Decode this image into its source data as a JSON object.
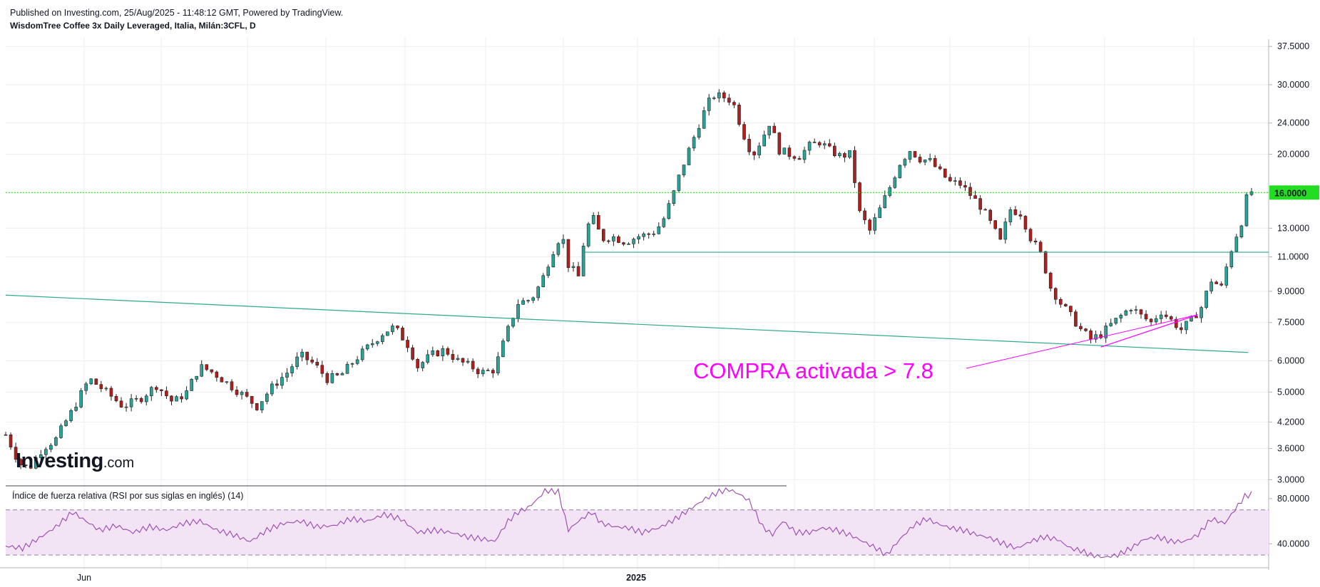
{
  "header": {
    "published": "Published on Investing.com, 25/Aug/2025 - 11:48:12 GMT, Powered by TradingView.",
    "instrument": "WisdomTree Coffee 3x Daily Leveraged, Italia, Milán:3CFL, D"
  },
  "logo": {
    "brand": "Investing",
    "suffix": ".com"
  },
  "colors": {
    "up": "#26a69a",
    "down": "#b71c1c",
    "hline": "#00e000",
    "trend": "#2bab8c",
    "annotation": "#ff00ff",
    "rsi": "#9a47b0",
    "rsi_band": "#f2e3f5",
    "grid": "#eeeeee",
    "price_label_bg": "#22dd22"
  },
  "chart_data": [
    {
      "type": "candlestick",
      "title": "WisdomTree Coffee 3x Daily Leveraged, Italia, Milán:3CFL, D",
      "y_scale": "log",
      "y_ticks": [
        "37.5000",
        "30.0000",
        "24.0000",
        "20.0000",
        "16.0000",
        "13.0000",
        "11.0000",
        "9.0000",
        "7.5000",
        "6.0000",
        "5.0000",
        "4.2000",
        "3.6000",
        "3.0000"
      ],
      "x_ticks": [
        "Jun",
        "2025"
      ],
      "last_price_label": "16.0000",
      "ylim": [
        2.8,
        38
      ],
      "price_path": [
        [
          0,
          3.9
        ],
        [
          8,
          3.3
        ],
        [
          14,
          3.2
        ],
        [
          22,
          3.6
        ],
        [
          30,
          3.8
        ],
        [
          40,
          4.5
        ],
        [
          50,
          5.4
        ],
        [
          60,
          5.0
        ],
        [
          70,
          4.6
        ],
        [
          80,
          4.8
        ],
        [
          90,
          5.2
        ],
        [
          100,
          4.7
        ],
        [
          108,
          5.0
        ],
        [
          116,
          5.8
        ],
        [
          124,
          5.6
        ],
        [
          134,
          5.2
        ],
        [
          142,
          4.9
        ],
        [
          150,
          4.6
        ],
        [
          160,
          5.2
        ],
        [
          168,
          5.6
        ],
        [
          176,
          6.2
        ],
        [
          184,
          5.9
        ],
        [
          192,
          5.4
        ],
        [
          200,
          5.5
        ],
        [
          208,
          6.0
        ],
        [
          218,
          6.6
        ],
        [
          226,
          7.1
        ],
        [
          232,
          7.3
        ],
        [
          240,
          6.6
        ],
        [
          246,
          5.8
        ],
        [
          254,
          6.2
        ],
        [
          262,
          6.4
        ],
        [
          270,
          6.0
        ],
        [
          278,
          5.8
        ],
        [
          284,
          5.6
        ],
        [
          292,
          5.7
        ],
        [
          298,
          6.8
        ],
        [
          306,
          8.4
        ],
        [
          314,
          8.6
        ],
        [
          320,
          9.5
        ],
        [
          326,
          11.2
        ],
        [
          332,
          12.6
        ],
        [
          336,
          10.5
        ],
        [
          342,
          9.8
        ],
        [
          346,
          12.5
        ],
        [
          350,
          14.0
        ],
        [
          356,
          12.2
        ],
        [
          362,
          12.4
        ],
        [
          370,
          12.0
        ],
        [
          378,
          12.4
        ],
        [
          386,
          12.6
        ],
        [
          392,
          13.4
        ],
        [
          398,
          15.5
        ],
        [
          404,
          18.5
        ],
        [
          410,
          21.5
        ],
        [
          416,
          25.0
        ],
        [
          422,
          28.2
        ],
        [
          428,
          28.0
        ],
        [
          434,
          27.3
        ],
        [
          440,
          22.8
        ],
        [
          446,
          19.8
        ],
        [
          452,
          22.0
        ],
        [
          456,
          24.0
        ],
        [
          462,
          20.5
        ],
        [
          468,
          20.0
        ],
        [
          474,
          19.8
        ],
        [
          480,
          21.0
        ],
        [
          486,
          21.5
        ],
        [
          492,
          20.5
        ],
        [
          498,
          19.8
        ],
        [
          504,
          20.0
        ],
        [
          510,
          14.2
        ],
        [
          516,
          12.8
        ],
        [
          522,
          14.5
        ],
        [
          528,
          16.5
        ],
        [
          534,
          19.0
        ],
        [
          540,
          20.5
        ],
        [
          546,
          19.5
        ],
        [
          552,
          19.2
        ],
        [
          558,
          18.0
        ],
        [
          564,
          17.0
        ],
        [
          570,
          16.8
        ],
        [
          576,
          15.8
        ],
        [
          582,
          14.8
        ],
        [
          588,
          13.4
        ],
        [
          594,
          12.0
        ],
        [
          600,
          14.5
        ],
        [
          606,
          14.2
        ],
        [
          612,
          12.3
        ],
        [
          618,
          11.2
        ],
        [
          624,
          9.2
        ],
        [
          630,
          8.4
        ],
        [
          636,
          7.8
        ],
        [
          642,
          7.2
        ],
        [
          648,
          6.8
        ],
        [
          654,
          7.0
        ],
        [
          660,
          7.4
        ],
        [
          666,
          7.8
        ],
        [
          672,
          8.2
        ],
        [
          678,
          7.8
        ],
        [
          684,
          7.5
        ],
        [
          690,
          8.0
        ],
        [
          696,
          7.6
        ],
        [
          702,
          7.2
        ],
        [
          708,
          7.6
        ],
        [
          714,
          8.2
        ],
        [
          720,
          9.6
        ],
        [
          726,
          9.2
        ],
        [
          732,
          11.5
        ],
        [
          738,
          13.5
        ],
        [
          742,
          16.1
        ]
      ],
      "horizontal_line": {
        "value": 16.0
      },
      "support_line": {
        "value": 11.3,
        "from_index": 346
      },
      "trendlines": [
        {
          "from": [
            0,
            8.8
          ],
          "to": [
            742,
            6.3
          ]
        },
        {
          "from": [
            654,
            6.5
          ],
          "to": [
            712,
            7.85
          ]
        }
      ],
      "annotation": {
        "text": "COMPRA activada > 7.8",
        "arrow_to": [
          712,
          7.85
        ]
      }
    },
    {
      "type": "line",
      "title": "Índice de fuerza relativa (RSI por sus siglas en inglés) (14)",
      "y_ticks": [
        "80.0000",
        "40.0000"
      ],
      "band": [
        30,
        70
      ],
      "ylim": [
        20,
        90
      ],
      "rsi_path": [
        [
          0,
          38
        ],
        [
          10,
          36
        ],
        [
          20,
          45
        ],
        [
          30,
          55
        ],
        [
          40,
          68
        ],
        [
          46,
          62
        ],
        [
          56,
          52
        ],
        [
          66,
          56
        ],
        [
          76,
          50
        ],
        [
          86,
          55
        ],
        [
          96,
          52
        ],
        [
          106,
          58
        ],
        [
          116,
          60
        ],
        [
          126,
          52
        ],
        [
          136,
          48
        ],
        [
          146,
          42
        ],
        [
          156,
          52
        ],
        [
          166,
          58
        ],
        [
          176,
          60
        ],
        [
          186,
          55
        ],
        [
          196,
          56
        ],
        [
          206,
          62
        ],
        [
          216,
          60
        ],
        [
          226,
          66
        ],
        [
          236,
          62
        ],
        [
          246,
          50
        ],
        [
          256,
          52
        ],
        [
          266,
          50
        ],
        [
          276,
          46
        ],
        [
          286,
          44
        ],
        [
          292,
          42
        ],
        [
          300,
          60
        ],
        [
          306,
          68
        ],
        [
          312,
          72
        ],
        [
          318,
          80
        ],
        [
          322,
          87
        ],
        [
          330,
          86
        ],
        [
          336,
          52
        ],
        [
          342,
          60
        ],
        [
          350,
          68
        ],
        [
          356,
          58
        ],
        [
          364,
          55
        ],
        [
          372,
          54
        ],
        [
          380,
          50
        ],
        [
          390,
          54
        ],
        [
          400,
          62
        ],
        [
          410,
          72
        ],
        [
          418,
          80
        ],
        [
          426,
          86
        ],
        [
          432,
          88
        ],
        [
          438,
          84
        ],
        [
          444,
          78
        ],
        [
          452,
          55
        ],
        [
          458,
          48
        ],
        [
          464,
          60
        ],
        [
          472,
          50
        ],
        [
          480,
          50
        ],
        [
          488,
          54
        ],
        [
          496,
          52
        ],
        [
          504,
          48
        ],
        [
          512,
          42
        ],
        [
          520,
          36
        ],
        [
          526,
          30
        ],
        [
          534,
          44
        ],
        [
          542,
          56
        ],
        [
          550,
          62
        ],
        [
          556,
          58
        ],
        [
          564,
          54
        ],
        [
          572,
          52
        ],
        [
          580,
          48
        ],
        [
          588,
          45
        ],
        [
          596,
          40
        ],
        [
          604,
          36
        ],
        [
          612,
          42
        ],
        [
          620,
          46
        ],
        [
          628,
          44
        ],
        [
          636,
          36
        ],
        [
          642,
          34
        ],
        [
          648,
          30
        ],
        [
          656,
          28
        ],
        [
          664,
          30
        ],
        [
          672,
          36
        ],
        [
          680,
          44
        ],
        [
          688,
          46
        ],
        [
          696,
          42
        ],
        [
          704,
          42
        ],
        [
          712,
          48
        ],
        [
          720,
          62
        ],
        [
          728,
          58
        ],
        [
          734,
          70
        ],
        [
          740,
          82
        ],
        [
          744,
          84
        ]
      ]
    }
  ]
}
